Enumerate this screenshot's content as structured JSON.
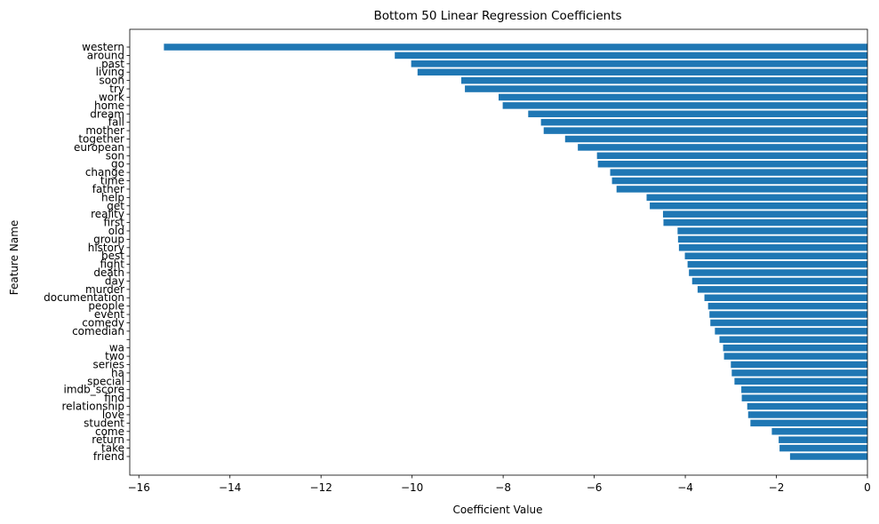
{
  "chart_data": {
    "type": "bar",
    "orientation": "horizontal",
    "title": "Bottom 50 Linear Regression Coefficients",
    "xlabel": "Coefficient Value",
    "ylabel": "Feature Name",
    "xlim": [
      -16.2,
      0
    ],
    "xticks": [
      -16,
      -14,
      -12,
      -10,
      -8,
      -6,
      -4,
      -2,
      0
    ],
    "grid": false,
    "color": "#1f77b4",
    "categories": [
      "western",
      "around",
      "past",
      "living",
      "soon",
      "try",
      "work",
      "home",
      "dream",
      "fall",
      "mother",
      "together",
      "european",
      "son",
      "go",
      "change",
      "time",
      "father",
      "help",
      "get",
      "reality",
      "first",
      "old",
      "group",
      "history",
      "best",
      "fight",
      "death",
      "day",
      "murder",
      "documentation",
      "people",
      "event",
      "comedy",
      "comedian",
      "",
      "wa",
      "two",
      "series",
      "ha",
      "special",
      "imdb_score",
      "find",
      "relationship",
      "love",
      "student",
      "come",
      "return",
      "take",
      "friend"
    ],
    "values": [
      -15.45,
      -10.38,
      -10.02,
      -9.88,
      -8.92,
      -8.84,
      -8.1,
      -8.01,
      -7.45,
      -7.17,
      -7.11,
      -6.64,
      -6.36,
      -5.94,
      -5.92,
      -5.65,
      -5.61,
      -5.51,
      -4.85,
      -4.78,
      -4.49,
      -4.48,
      -4.17,
      -4.16,
      -4.14,
      -4.01,
      -3.95,
      -3.92,
      -3.85,
      -3.73,
      -3.58,
      -3.5,
      -3.47,
      -3.45,
      -3.35,
      -3.25,
      -3.17,
      -3.15,
      -3.0,
      -2.98,
      -2.92,
      -2.77,
      -2.76,
      -2.64,
      -2.62,
      -2.57,
      -2.1,
      -1.95,
      -1.93,
      -1.7
    ]
  }
}
